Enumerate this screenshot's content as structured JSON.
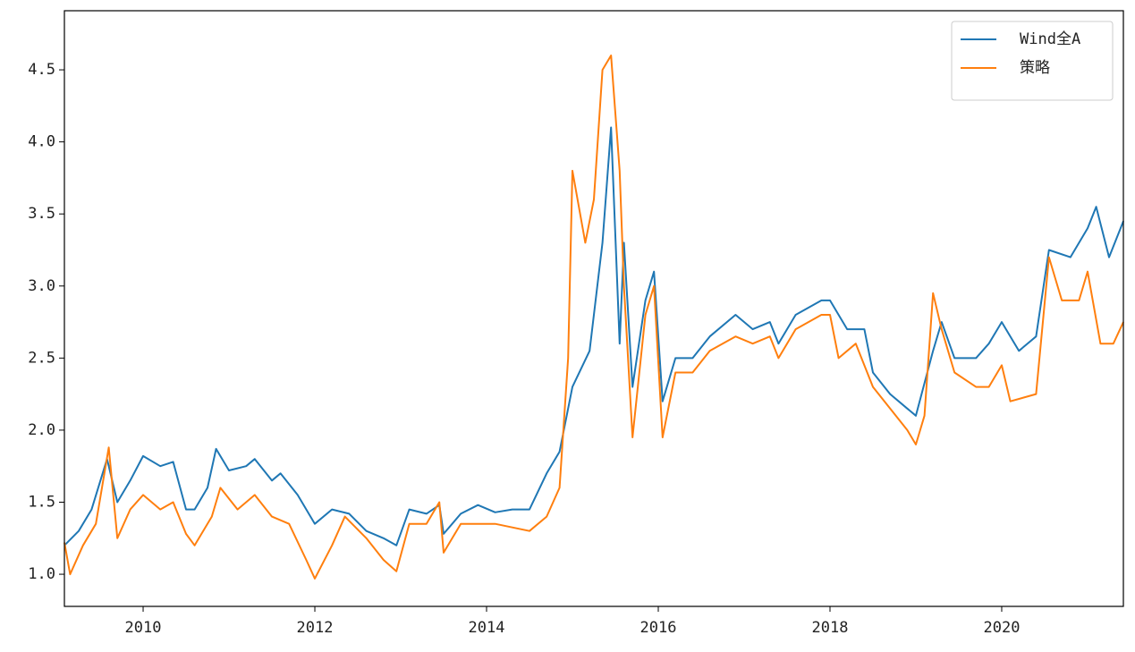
{
  "chart_data": {
    "type": "line",
    "xlim": [
      2009.083,
      2021.417
    ],
    "xticks": [
      2010,
      2012,
      2014,
      2016,
      2018,
      2020
    ],
    "ylim": [
      0.777,
      4.91
    ],
    "yticks": [
      {
        "value": 1.0,
        "label": "1.0"
      },
      {
        "value": 1.5,
        "label": "1.5"
      },
      {
        "value": 2.0,
        "label": "2.0"
      },
      {
        "value": 2.5,
        "label": "2.5"
      },
      {
        "value": 3.0,
        "label": "3.0"
      },
      {
        "value": 3.5,
        "label": "3.5"
      },
      {
        "value": 4.0,
        "label": "4.0"
      },
      {
        "value": 4.5,
        "label": "4.5"
      }
    ],
    "legend": "upper right",
    "series": [
      {
        "name": "Wind全A",
        "color": "#1f77b4",
        "x": [
          2009.083,
          2009.25,
          2009.4,
          2009.58,
          2009.7,
          2009.85,
          2010.0,
          2010.2,
          2010.35,
          2010.5,
          2010.6,
          2010.75,
          2010.85,
          2011.0,
          2011.2,
          2011.3,
          2011.5,
          2011.6,
          2011.8,
          2012.0,
          2012.2,
          2012.4,
          2012.6,
          2012.8,
          2012.95,
          2013.1,
          2013.3,
          2013.45,
          2013.5,
          2013.7,
          2013.9,
          2014.1,
          2014.3,
          2014.5,
          2014.7,
          2014.85,
          2015.0,
          2015.2,
          2015.35,
          2015.45,
          2015.55,
          2015.6,
          2015.7,
          2015.85,
          2015.95,
          2016.05,
          2016.2,
          2016.4,
          2016.6,
          2016.9,
          2017.1,
          2017.3,
          2017.4,
          2017.6,
          2017.9,
          2018.0,
          2018.2,
          2018.4,
          2018.5,
          2018.7,
          2018.9,
          2019.0,
          2019.2,
          2019.3,
          2019.45,
          2019.7,
          2019.85,
          2020.0,
          2020.2,
          2020.4,
          2020.55,
          2020.8,
          2021.0,
          2021.1,
          2021.25,
          2021.417
        ],
        "values": [
          1.2,
          1.3,
          1.45,
          1.8,
          1.5,
          1.65,
          1.82,
          1.75,
          1.78,
          1.45,
          1.45,
          1.6,
          1.87,
          1.72,
          1.75,
          1.8,
          1.65,
          1.7,
          1.55,
          1.35,
          1.45,
          1.42,
          1.3,
          1.25,
          1.2,
          1.45,
          1.42,
          1.48,
          1.28,
          1.42,
          1.48,
          1.43,
          1.45,
          1.45,
          1.7,
          1.85,
          2.3,
          2.55,
          3.3,
          4.1,
          2.6,
          3.3,
          2.3,
          2.9,
          3.1,
          2.2,
          2.5,
          2.5,
          2.65,
          2.8,
          2.7,
          2.75,
          2.6,
          2.8,
          2.9,
          2.9,
          2.7,
          2.7,
          2.4,
          2.25,
          2.15,
          2.1,
          2.55,
          2.75,
          2.5,
          2.5,
          2.6,
          2.75,
          2.55,
          2.65,
          3.25,
          3.2,
          3.4,
          3.55,
          3.2,
          3.45
        ]
      },
      {
        "name": "策略",
        "color": "#ff7f0e",
        "x": [
          2009.083,
          2009.15,
          2009.3,
          2009.45,
          2009.6,
          2009.7,
          2009.85,
          2010.0,
          2010.2,
          2010.35,
          2010.5,
          2010.6,
          2010.8,
          2010.9,
          2011.1,
          2011.3,
          2011.5,
          2011.7,
          2011.9,
          2012.0,
          2012.2,
          2012.35,
          2012.6,
          2012.8,
          2012.95,
          2013.1,
          2013.3,
          2013.45,
          2013.5,
          2013.7,
          2013.9,
          2014.1,
          2014.5,
          2014.7,
          2014.85,
          2014.95,
          2015.0,
          2015.15,
          2015.25,
          2015.35,
          2015.45,
          2015.55,
          2015.6,
          2015.7,
          2015.85,
          2015.95,
          2016.05,
          2016.2,
          2016.4,
          2016.6,
          2016.9,
          2017.1,
          2017.3,
          2017.4,
          2017.6,
          2017.9,
          2018.0,
          2018.1,
          2018.3,
          2018.5,
          2018.7,
          2018.9,
          2019.0,
          2019.1,
          2019.2,
          2019.3,
          2019.45,
          2019.7,
          2019.85,
          2020.0,
          2020.1,
          2020.4,
          2020.55,
          2020.7,
          2020.9,
          2021.0,
          2021.15,
          2021.3,
          2021.417
        ],
        "values": [
          1.22,
          1.0,
          1.2,
          1.35,
          1.88,
          1.25,
          1.45,
          1.55,
          1.45,
          1.5,
          1.28,
          1.2,
          1.4,
          1.6,
          1.45,
          1.55,
          1.4,
          1.35,
          1.1,
          0.97,
          1.2,
          1.4,
          1.25,
          1.1,
          1.02,
          1.35,
          1.35,
          1.5,
          1.15,
          1.35,
          1.35,
          1.35,
          1.3,
          1.4,
          1.6,
          2.5,
          3.8,
          3.3,
          3.6,
          4.5,
          4.6,
          3.8,
          3.0,
          1.95,
          2.8,
          3.0,
          1.95,
          2.4,
          2.4,
          2.55,
          2.65,
          2.6,
          2.65,
          2.5,
          2.7,
          2.8,
          2.8,
          2.5,
          2.6,
          2.3,
          2.15,
          2.0,
          1.9,
          2.1,
          2.95,
          2.7,
          2.4,
          2.3,
          2.3,
          2.45,
          2.2,
          2.25,
          3.2,
          2.9,
          2.9,
          3.1,
          2.6,
          2.6,
          2.75
        ]
      }
    ]
  }
}
